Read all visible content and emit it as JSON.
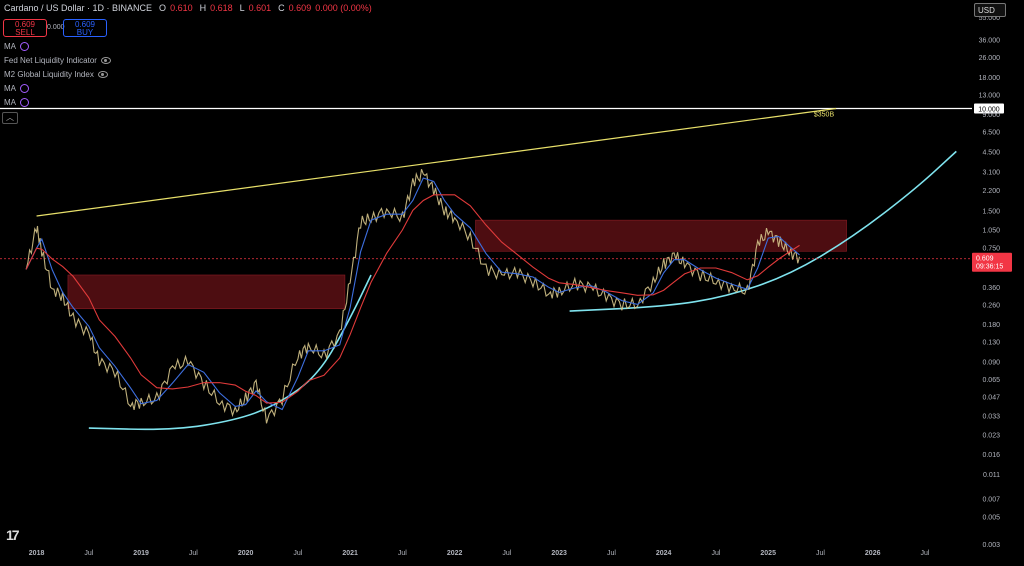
{
  "header": {
    "title": "Cardano / US Dollar · 1D · BINANCE",
    "open_label": "O",
    "open": "0.610",
    "high_label": "H",
    "high": "0.618",
    "low_label": "L",
    "low": "0.601",
    "close_label": "C",
    "close": "0.609",
    "change": "0.000 (0.00%)"
  },
  "trade": {
    "sell_price": "0.609",
    "sell_label": "SELL",
    "spread": "0.000",
    "buy_price": "0.609",
    "buy_label": "BUY"
  },
  "indicators": [
    {
      "label": "MA"
    },
    {
      "label": "Fed Net Liquidity Indicator"
    },
    {
      "label": "M2 Global Liquidity Index"
    },
    {
      "label": "MA"
    },
    {
      "label": "MA"
    }
  ],
  "currency_button": "USD",
  "collapse_icon": "chevron-up-icon",
  "colors": {
    "background": "#000000",
    "price": "#d4c38a",
    "ma_fast": "#3d6fe0",
    "ma_slow": "#e03a3a",
    "trend_line": "#e8e06a",
    "curve": "#7fe3ee",
    "resistance_box": "#5a0f14",
    "level_line": "#ffffff",
    "last_price": "#f23645"
  },
  "chart_data": {
    "type": "line",
    "yscale": "log",
    "ylim": [
      0.003,
      65
    ],
    "x_ticks": [
      "2018",
      "Jul",
      "2019",
      "Jul",
      "2020",
      "Jul",
      "2021",
      "Jul",
      "2022",
      "Jul",
      "2023",
      "Jul",
      "2024",
      "Jul",
      "2025",
      "Jul",
      "2026",
      "Jul"
    ],
    "y_ticks": [
      "55.000",
      "36.000",
      "26.000",
      "18.000",
      "13.000",
      "9.000",
      "6.500",
      "4.500",
      "3.100",
      "2.200",
      "1.500",
      "1.050",
      "0.750",
      "0.360",
      "0.260",
      "0.180",
      "0.130",
      "0.090",
      "0.065",
      "0.047",
      "0.033",
      "0.023",
      "0.016",
      "0.011",
      "0.007",
      "0.005",
      "0.003"
    ],
    "y_tick_values": [
      55,
      36,
      26,
      18,
      13,
      9,
      6.5,
      4.5,
      3.1,
      2.2,
      1.5,
      1.05,
      0.75,
      0.36,
      0.26,
      0.18,
      0.13,
      0.09,
      0.065,
      0.047,
      0.033,
      0.023,
      0.016,
      0.011,
      0.007,
      0.005,
      0.003
    ],
    "series": [
      {
        "x": [
          2017.9,
          2018.0,
          2018.05,
          2018.15,
          2018.25,
          2018.35,
          2018.5,
          2018.6,
          2018.75,
          2018.9,
          2019.0,
          2019.15,
          2019.3,
          2019.45,
          2019.6,
          2019.75,
          2019.9,
          2020.0,
          2020.1,
          2020.2,
          2020.35,
          2020.5,
          2020.6,
          2020.75,
          2020.9,
          2021.0,
          2021.1,
          2021.2,
          2021.35,
          2021.5,
          2021.6,
          2021.7,
          2021.8,
          2021.9,
          2022.0,
          2022.15,
          2022.3,
          2022.45,
          2022.6,
          2022.75,
          2022.9,
          2023.0,
          2023.15,
          2023.3,
          2023.45,
          2023.6,
          2023.75,
          2023.9,
          2024.0,
          2024.1,
          2024.2,
          2024.35,
          2024.5,
          2024.65,
          2024.8,
          2024.9,
          2025.0,
          2025.1,
          2025.2,
          2025.3
        ],
        "y": [
          0.5,
          1.1,
          0.7,
          0.35,
          0.3,
          0.2,
          0.15,
          0.09,
          0.075,
          0.04,
          0.042,
          0.045,
          0.08,
          0.09,
          0.06,
          0.042,
          0.036,
          0.045,
          0.06,
          0.03,
          0.045,
          0.1,
          0.12,
          0.1,
          0.15,
          0.4,
          1.2,
          1.3,
          1.5,
          1.3,
          2.5,
          3.0,
          2.2,
          1.5,
          1.3,
          0.9,
          0.5,
          0.45,
          0.47,
          0.4,
          0.32,
          0.33,
          0.38,
          0.36,
          0.3,
          0.26,
          0.26,
          0.4,
          0.55,
          0.65,
          0.55,
          0.45,
          0.4,
          0.36,
          0.33,
          0.8,
          1.0,
          0.85,
          0.7,
          0.61
        ]
      }
    ],
    "annotations": {
      "horizontal_level": "10.000",
      "horizontal_level_value": 10,
      "target_label": "$350B",
      "last_price": "0.609",
      "last_price_value": 0.609,
      "countdown": "09:36:15",
      "resistance_zones": [
        {
          "x_start": 2018.3,
          "x_end": 2020.95,
          "y_low": 0.24,
          "y_high": 0.45
        },
        {
          "x_start": 2022.2,
          "x_end": 2025.75,
          "y_low": 0.7,
          "y_high": 1.25
        }
      ],
      "trend_line": {
        "x": [
          2018.0,
          2025.65
        ],
        "y": [
          1.35,
          10
        ]
      },
      "support_curve": {
        "x": [
          2018.5,
          2019.3,
          2019.9,
          2020.3,
          2020.7,
          2021.0,
          2021.2
        ],
        "y": [
          0.026,
          0.025,
          0.03,
          0.04,
          0.07,
          0.2,
          0.45
        ]
      },
      "support_curve_2": {
        "x": [
          2023.1,
          2024.0,
          2024.6,
          2025.2,
          2025.8,
          2026.4,
          2026.8
        ],
        "y": [
          0.23,
          0.25,
          0.3,
          0.45,
          0.9,
          2.2,
          4.5
        ]
      }
    }
  }
}
